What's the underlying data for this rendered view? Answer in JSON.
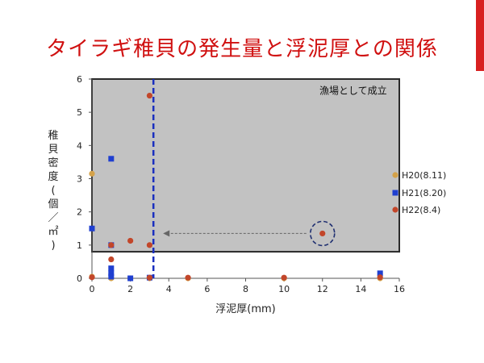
{
  "slide": {
    "title": "タイラギ稚貝の発生量と浮泥厚との関係",
    "accent_color": "#d82020",
    "title_color": "#d01010"
  },
  "chart_data": {
    "type": "scatter",
    "xlabel": "浮泥厚(mm)",
    "ylabel": "稚貝密度(個／㎡)",
    "xlim": [
      0,
      16
    ],
    "ylim": [
      0,
      6
    ],
    "xticks": [
      0,
      2,
      4,
      6,
      8,
      10,
      12,
      14,
      16
    ],
    "yticks": [
      0,
      1,
      2,
      3,
      4,
      5,
      6
    ],
    "shaded_region_label": "漁場として成立",
    "shaded_region": {
      "x": [
        0,
        16
      ],
      "y": [
        0.8,
        6
      ]
    },
    "threshold_x": 3.2,
    "highlight_point": {
      "x": 12,
      "y": 1.35
    },
    "series": [
      {
        "name": "H20(8.11)",
        "marker": "circle",
        "color": "#d4a24a",
        "points": [
          [
            0,
            3.15
          ],
          [
            0,
            0.05
          ],
          [
            1,
            0
          ],
          [
            2,
            0
          ],
          [
            3,
            0
          ],
          [
            5,
            0
          ],
          [
            10,
            0
          ],
          [
            15,
            0
          ]
        ]
      },
      {
        "name": "H21(8.20)",
        "marker": "square",
        "color": "#1f3fd0",
        "points": [
          [
            0,
            1.5
          ],
          [
            1,
            3.6
          ],
          [
            1,
            1.0
          ],
          [
            1,
            0.3
          ],
          [
            1,
            0.15
          ],
          [
            1,
            0.05
          ],
          [
            2,
            0
          ],
          [
            3,
            0.02
          ],
          [
            15,
            0.15
          ]
        ]
      },
      {
        "name": "H22(8.4)",
        "marker": "circle",
        "color": "#c2462a",
        "points": [
          [
            0,
            0.03
          ],
          [
            1,
            0.57
          ],
          [
            1,
            1.0
          ],
          [
            2,
            1.13
          ],
          [
            3,
            5.5
          ],
          [
            3,
            1.0
          ],
          [
            3,
            0.02
          ],
          [
            5,
            0.02
          ],
          [
            10,
            0.02
          ],
          [
            12,
            1.35
          ],
          [
            15,
            0.03
          ]
        ]
      }
    ]
  }
}
